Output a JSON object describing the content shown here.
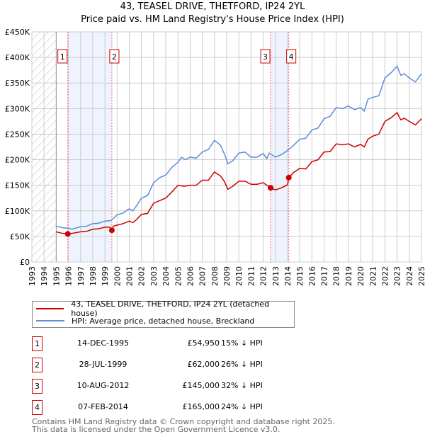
{
  "title": "43, TEASEL DRIVE, THETFORD, IP24 2YL",
  "subtitle": "Price paid vs. HM Land Registry's House Price Index (HPI)",
  "chart_data": {
    "type": "line",
    "xlim": [
      1993,
      2025
    ],
    "ylim": [
      0,
      450000
    ],
    "y_ticks": [
      {
        "v": 0,
        "label": "£0"
      },
      {
        "v": 50000,
        "label": "£50K"
      },
      {
        "v": 100000,
        "label": "£100K"
      },
      {
        "v": 150000,
        "label": "£150K"
      },
      {
        "v": 200000,
        "label": "£200K"
      },
      {
        "v": 250000,
        "label": "£250K"
      },
      {
        "v": 300000,
        "label": "£300K"
      },
      {
        "v": 350000,
        "label": "£350K"
      },
      {
        "v": 400000,
        "label": "£400K"
      },
      {
        "v": 450000,
        "label": "£450K"
      }
    ],
    "x_ticks": [
      "1993",
      "1994",
      "1995",
      "1996",
      "1997",
      "1998",
      "1999",
      "2000",
      "2001",
      "2002",
      "2003",
      "2004",
      "2005",
      "2006",
      "2007",
      "2008",
      "2009",
      "2010",
      "2011",
      "2012",
      "2013",
      "2014",
      "2015",
      "2016",
      "2017",
      "2018",
      "2019",
      "2020",
      "2021",
      "2022",
      "2023",
      "2024",
      "2025"
    ],
    "grid": true,
    "hatched_before": 1995,
    "shaded_ranges": [
      [
        1995.95,
        1999.57
      ],
      [
        2012.61,
        2014.1
      ]
    ],
    "series": [
      {
        "name": "43, TEASEL DRIVE, THETFORD, IP24 2YL (detached house)",
        "color": "#cc0000",
        "x": [
          1995,
          1995.5,
          1995.95,
          1996.3,
          1997,
          1997.5,
          1998,
          1998.5,
          1999,
          1999.4,
          1999.57,
          1999.7,
          2000,
          2000.5,
          2001,
          2001.3,
          2001.6,
          2002,
          2002.5,
          2003,
          2003.5,
          2004,
          2004.5,
          2005,
          2005.5,
          2006,
          2006.5,
          2007,
          2007.5,
          2008,
          2008.5,
          2008.8,
          2009.1,
          2009.5,
          2010,
          2010.5,
          2011,
          2011.5,
          2012,
          2012.3,
          2012.61,
          2013,
          2013.5,
          2014,
          2014.1,
          2014.5,
          2015,
          2015.5,
          2016,
          2016.5,
          2017,
          2017.5,
          2018,
          2018.5,
          2019,
          2019.5,
          2020,
          2020.3,
          2020.6,
          2021,
          2021.5,
          2022,
          2022.5,
          2023,
          2023.3,
          2023.6,
          2024,
          2024.5,
          2025
        ],
        "y": [
          59000,
          56000,
          54950,
          56000,
          59000,
          60000,
          64000,
          65000,
          68000,
          68000,
          62000,
          70000,
          72000,
          75000,
          80000,
          77000,
          83000,
          93000,
          95000,
          115000,
          120000,
          125000,
          137000,
          150000,
          148000,
          150000,
          150000,
          160000,
          160000,
          176000,
          168000,
          158000,
          142000,
          148000,
          158000,
          158000,
          152000,
          152000,
          155000,
          150000,
          145000,
          141000,
          145000,
          151000,
          165000,
          175000,
          183000,
          182000,
          196000,
          200000,
          215000,
          216000,
          231000,
          229000,
          231000,
          225000,
          230000,
          225000,
          240000,
          246000,
          250000,
          275000,
          282000,
          292000,
          278000,
          281000,
          275000,
          268000,
          280000
        ]
      },
      {
        "name": "HPI: Average price, detached house, Breckland",
        "color": "#5b8fd4",
        "x": [
          1995,
          1995.5,
          1996,
          1996.3,
          1997,
          1997.5,
          1998,
          1998.5,
          1999,
          1999.5,
          2000,
          2000.5,
          2001,
          2001.3,
          2001.6,
          2002,
          2002.5,
          2003,
          2003.5,
          2004,
          2004.5,
          2005,
          2005.3,
          2005.6,
          2006,
          2006.5,
          2007,
          2007.5,
          2008,
          2008.5,
          2008.8,
          2009.1,
          2009.5,
          2010,
          2010.5,
          2011,
          2011.5,
          2012,
          2012.3,
          2012.5,
          2013,
          2013.5,
          2014,
          2014.5,
          2015,
          2015.5,
          2016,
          2016.5,
          2017,
          2017.5,
          2018,
          2018.5,
          2019,
          2019.5,
          2020,
          2020.3,
          2020.6,
          2021,
          2021.5,
          2022,
          2022.5,
          2023,
          2023.3,
          2023.6,
          2024,
          2024.5,
          2025
        ],
        "y": [
          70000,
          67000,
          66000,
          64000,
          69000,
          70000,
          75000,
          76000,
          80000,
          81000,
          92000,
          96000,
          104000,
          100000,
          110000,
          125000,
          130000,
          155000,
          165000,
          170000,
          185000,
          195000,
          205000,
          200000,
          205000,
          203000,
          215000,
          220000,
          238000,
          228000,
          212000,
          192000,
          198000,
          213000,
          215000,
          205000,
          205000,
          212000,
          202000,
          213000,
          205000,
          210000,
          218000,
          228000,
          240000,
          242000,
          258000,
          262000,
          280000,
          285000,
          302000,
          300000,
          305000,
          298000,
          302000,
          295000,
          318000,
          322000,
          325000,
          360000,
          370000,
          383000,
          365000,
          368000,
          360000,
          352000,
          368000
        ]
      }
    ],
    "sales": [
      {
        "id": "1",
        "x": 1995.95,
        "y": 54950
      },
      {
        "id": "2",
        "x": 1999.57,
        "y": 62000
      },
      {
        "id": "3",
        "x": 2012.61,
        "y": 145000
      },
      {
        "id": "4",
        "x": 2014.1,
        "y": 165000
      }
    ]
  },
  "legend": {
    "property": "43, TEASEL DRIVE, THETFORD, IP24 2YL (detached house)",
    "hpi": "HPI: Average price, detached house, Breckland"
  },
  "transactions": [
    {
      "id": "1",
      "date": "14-DEC-1995",
      "price": "£54,950",
      "hpi": "15% ↓ HPI"
    },
    {
      "id": "2",
      "date": "28-JUL-1999",
      "price": "£62,000",
      "hpi": "26% ↓ HPI"
    },
    {
      "id": "3",
      "date": "10-AUG-2012",
      "price": "£145,000",
      "hpi": "32% ↓ HPI"
    },
    {
      "id": "4",
      "date": "07-FEB-2014",
      "price": "£165,000",
      "hpi": "24% ↓ HPI"
    }
  ],
  "footer": {
    "line1": "Contains HM Land Registry data © Crown copyright and database right 2025.",
    "line2": "This data is licensed under the Open Government Licence v3.0."
  }
}
